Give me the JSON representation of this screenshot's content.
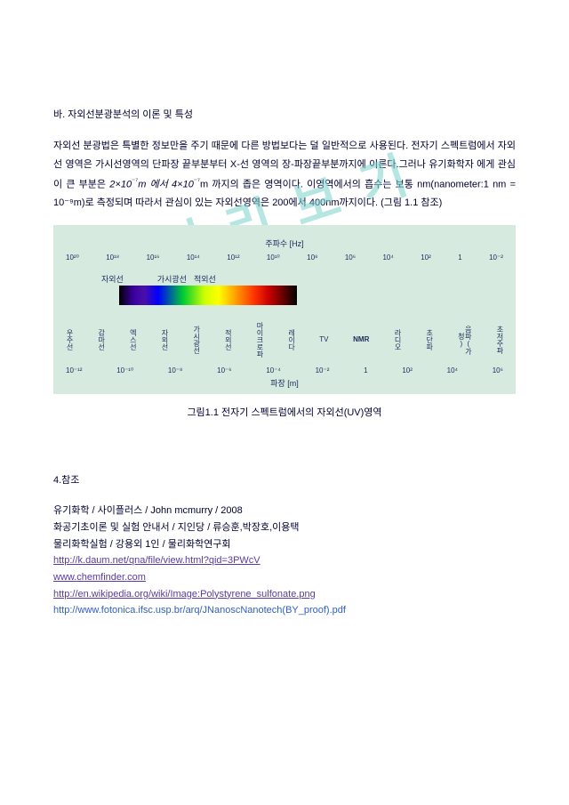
{
  "watermark": "미 리 보 기",
  "section_title": "바. 자외선분광분석의 이론 및 특성",
  "para1": "자외선 분광법은 특별한 정보만을 주기 때문에 다른 방법보다는 덜 일반적으로 사용된다. 전자기 스펙트럼에서 자외선 영역은 가시선영역의 단파장 끝부분부터 X-선 영역의 장-파장끝부분까지에 이른다.그러나 유기화학자 에게 관심이 큰 부분은 ",
  "para1_math1": "2×10",
  "para1_sup1": "⁻⁷",
  "para1_mid": "m 에서 4×10",
  "para1_sup2": "⁻⁷",
  "para1_after": "m 까지의 좁은 영역이다. 이영역에서의 흡수는 보통 nm(nanometer:1 nm = 10⁻⁹m)로 측정되며 따라서 관심이 있는 자외선영역은 200에서 400nm까지이다. (그림 1.1 참조)",
  "freq_label": "주파수 [Hz]",
  "top_ticks": [
    "10²⁰",
    "10¹⁸",
    "10¹⁶",
    "10¹⁴",
    "10¹²",
    "10¹⁰",
    "10⁸",
    "10⁶",
    "10⁴",
    "10²",
    "1",
    "10⁻²"
  ],
  "uv_label": "자외선",
  "vis_label": "가시광선",
  "ir_label": "적외선",
  "bands": [
    "우주선",
    "감마선",
    "엑스선",
    "자외선",
    "가시광선",
    "적외선",
    "마이크로파",
    "레이다",
    "TV",
    "NMR",
    "라디오",
    "초단파",
    "음파(가청)",
    "초저주파"
  ],
  "bot_ticks": [
    "10⁻¹²",
    "10⁻¹⁰",
    "10⁻⁸",
    "10⁻⁶",
    "10⁻⁴",
    "10⁻²",
    "1",
    "10²",
    "10⁴",
    "10⁶"
  ],
  "wave_label": "파장 [m]",
  "caption": "그림1.1 전자기 스펙트럼에서의 자외선(UV)영역",
  "ref_heading": "4.참조",
  "refs": {
    "r1": "유기화학 / 사이플러스 / John mcmurry / 2008",
    "r2": "화공기초이론 및 실험 안내서 / 지인당 / 류승훈,박장호,이용택",
    "r3": "물리화학실험 / 강용외 1인 / 물리화학연구회",
    "r4": "http://k.daum.net/qna/file/view.html?qid=3PWcV",
    "r5": "www.chemfinder.com",
    "r6": "http://en.wikipedia.org/wiki/Image:Polystyrene_sulfonate.png",
    "r7": "http://www.fotonica.ifsc.usp.br/arq/JNanoscNanotech(BY_proof).pdf"
  },
  "colors": {
    "text": "#000033",
    "panel_bg": "#d6eae0",
    "link": "#5a3aa0",
    "link2": "#2e5fc2",
    "watermark": "rgba(120,210,200,0.55)"
  }
}
